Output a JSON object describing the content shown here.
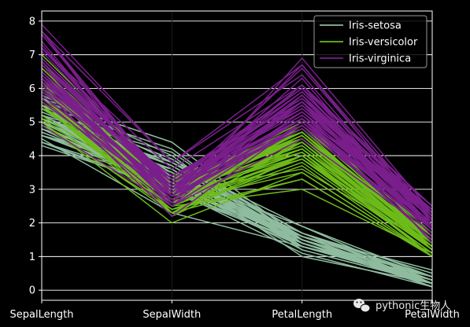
{
  "chart_data": {
    "type": "parallel_coordinates",
    "title": "",
    "xlabel": "",
    "ylabel": "",
    "categories": [
      "SepalLength",
      "SepalWidth",
      "PetalLength",
      "PetalWidth"
    ],
    "ylim": [
      -0.3,
      8.3
    ],
    "yticks": [
      0,
      1,
      2,
      3,
      4,
      5,
      6,
      7,
      8
    ],
    "grid": true,
    "legend_position": "top-right",
    "series": [
      {
        "name": "Iris-setosa",
        "color": "#8fbc9f",
        "rows": [
          [
            5.1,
            3.5,
            1.4,
            0.2
          ],
          [
            4.9,
            3.0,
            1.4,
            0.2
          ],
          [
            4.7,
            3.2,
            1.3,
            0.2
          ],
          [
            4.6,
            3.1,
            1.5,
            0.2
          ],
          [
            5.0,
            3.6,
            1.4,
            0.2
          ],
          [
            5.4,
            3.9,
            1.7,
            0.4
          ],
          [
            4.6,
            3.4,
            1.4,
            0.3
          ],
          [
            5.0,
            3.4,
            1.5,
            0.2
          ],
          [
            4.4,
            2.9,
            1.4,
            0.2
          ],
          [
            4.9,
            3.1,
            1.5,
            0.1
          ],
          [
            5.4,
            3.7,
            1.5,
            0.2
          ],
          [
            4.8,
            3.4,
            1.6,
            0.2
          ],
          [
            4.8,
            3.0,
            1.4,
            0.1
          ],
          [
            4.3,
            3.0,
            1.1,
            0.1
          ],
          [
            5.8,
            4.0,
            1.2,
            0.2
          ],
          [
            5.7,
            4.4,
            1.5,
            0.4
          ],
          [
            5.4,
            3.9,
            1.3,
            0.4
          ],
          [
            5.1,
            3.5,
            1.4,
            0.3
          ],
          [
            5.7,
            3.8,
            1.7,
            0.3
          ],
          [
            5.1,
            3.8,
            1.5,
            0.3
          ],
          [
            5.4,
            3.4,
            1.7,
            0.2
          ],
          [
            5.1,
            3.7,
            1.5,
            0.4
          ],
          [
            4.6,
            3.6,
            1.0,
            0.2
          ],
          [
            5.1,
            3.3,
            1.7,
            0.5
          ],
          [
            4.8,
            3.4,
            1.9,
            0.2
          ],
          [
            5.0,
            3.0,
            1.6,
            0.2
          ],
          [
            5.0,
            3.4,
            1.6,
            0.4
          ],
          [
            5.2,
            3.5,
            1.5,
            0.2
          ],
          [
            5.2,
            3.4,
            1.4,
            0.2
          ],
          [
            4.7,
            3.2,
            1.6,
            0.2
          ],
          [
            4.8,
            3.1,
            1.6,
            0.2
          ],
          [
            5.4,
            3.4,
            1.5,
            0.4
          ],
          [
            5.2,
            4.1,
            1.5,
            0.1
          ],
          [
            5.5,
            4.2,
            1.4,
            0.2
          ],
          [
            4.9,
            3.1,
            1.5,
            0.1
          ],
          [
            5.0,
            3.2,
            1.2,
            0.2
          ],
          [
            5.5,
            3.5,
            1.3,
            0.2
          ],
          [
            4.9,
            3.1,
            1.5,
            0.1
          ],
          [
            4.4,
            3.0,
            1.3,
            0.2
          ],
          [
            5.1,
            3.4,
            1.5,
            0.2
          ],
          [
            5.0,
            3.5,
            1.3,
            0.3
          ],
          [
            4.5,
            2.3,
            1.3,
            0.3
          ],
          [
            4.4,
            3.2,
            1.3,
            0.2
          ],
          [
            5.0,
            3.5,
            1.6,
            0.6
          ],
          [
            5.1,
            3.8,
            1.9,
            0.4
          ],
          [
            4.8,
            3.0,
            1.4,
            0.3
          ],
          [
            5.1,
            3.8,
            1.6,
            0.2
          ],
          [
            4.6,
            3.2,
            1.4,
            0.2
          ],
          [
            5.3,
            3.7,
            1.5,
            0.2
          ],
          [
            5.0,
            3.3,
            1.4,
            0.2
          ]
        ]
      },
      {
        "name": "Iris-versicolor",
        "color": "#6dbb1a",
        "rows": [
          [
            7.0,
            3.2,
            4.7,
            1.4
          ],
          [
            6.4,
            3.2,
            4.5,
            1.5
          ],
          [
            6.9,
            3.1,
            4.9,
            1.5
          ],
          [
            5.5,
            2.3,
            4.0,
            1.3
          ],
          [
            6.5,
            2.8,
            4.6,
            1.5
          ],
          [
            5.7,
            2.8,
            4.5,
            1.3
          ],
          [
            6.3,
            3.3,
            4.7,
            1.6
          ],
          [
            4.9,
            2.4,
            3.3,
            1.0
          ],
          [
            6.6,
            2.9,
            4.6,
            1.3
          ],
          [
            5.2,
            2.7,
            3.9,
            1.4
          ],
          [
            5.0,
            2.0,
            3.5,
            1.0
          ],
          [
            5.9,
            3.0,
            4.2,
            1.5
          ],
          [
            6.0,
            2.2,
            4.0,
            1.0
          ],
          [
            6.1,
            2.9,
            4.7,
            1.4
          ],
          [
            5.6,
            2.9,
            3.6,
            1.3
          ],
          [
            6.7,
            3.1,
            4.4,
            1.4
          ],
          [
            5.6,
            3.0,
            4.5,
            1.5
          ],
          [
            5.8,
            2.7,
            4.1,
            1.0
          ],
          [
            6.2,
            2.2,
            4.5,
            1.5
          ],
          [
            5.6,
            2.5,
            3.9,
            1.1
          ],
          [
            5.9,
            3.2,
            4.8,
            1.8
          ],
          [
            6.1,
            2.8,
            4.0,
            1.3
          ],
          [
            6.3,
            2.5,
            4.9,
            1.5
          ],
          [
            6.1,
            2.8,
            4.7,
            1.2
          ],
          [
            6.4,
            2.9,
            4.3,
            1.3
          ],
          [
            6.6,
            3.0,
            4.4,
            1.4
          ],
          [
            6.8,
            2.8,
            4.8,
            1.4
          ],
          [
            6.7,
            3.0,
            5.0,
            1.7
          ],
          [
            6.0,
            2.9,
            4.5,
            1.5
          ],
          [
            5.7,
            2.6,
            3.5,
            1.0
          ],
          [
            5.5,
            2.4,
            3.8,
            1.1
          ],
          [
            5.5,
            2.4,
            3.7,
            1.0
          ],
          [
            5.8,
            2.7,
            3.9,
            1.2
          ],
          [
            6.0,
            2.7,
            5.1,
            1.6
          ],
          [
            5.4,
            3.0,
            4.5,
            1.5
          ],
          [
            6.0,
            3.4,
            4.5,
            1.6
          ],
          [
            6.7,
            3.1,
            4.7,
            1.5
          ],
          [
            6.3,
            2.3,
            4.4,
            1.3
          ],
          [
            5.6,
            3.0,
            4.1,
            1.3
          ],
          [
            5.5,
            2.5,
            4.0,
            1.3
          ],
          [
            5.5,
            2.6,
            4.4,
            1.2
          ],
          [
            6.1,
            3.0,
            4.6,
            1.4
          ],
          [
            5.8,
            2.6,
            4.0,
            1.2
          ],
          [
            5.0,
            2.3,
            3.3,
            1.0
          ],
          [
            5.6,
            2.7,
            4.2,
            1.3
          ],
          [
            5.7,
            3.0,
            4.2,
            1.2
          ],
          [
            5.7,
            2.9,
            4.2,
            1.3
          ],
          [
            6.2,
            2.9,
            4.3,
            1.3
          ],
          [
            5.1,
            2.5,
            3.0,
            1.1
          ],
          [
            5.7,
            2.8,
            4.1,
            1.3
          ]
        ]
      },
      {
        "name": "Iris-virginica",
        "color": "#7a1f8c",
        "rows": [
          [
            6.3,
            3.3,
            6.0,
            2.5
          ],
          [
            5.8,
            2.7,
            5.1,
            1.9
          ],
          [
            7.1,
            3.0,
            5.9,
            2.1
          ],
          [
            6.3,
            2.9,
            5.6,
            1.8
          ],
          [
            6.5,
            3.0,
            5.8,
            2.2
          ],
          [
            7.6,
            3.0,
            6.6,
            2.1
          ],
          [
            4.9,
            2.5,
            4.5,
            1.7
          ],
          [
            7.3,
            2.9,
            6.3,
            1.8
          ],
          [
            6.7,
            2.5,
            5.8,
            1.8
          ],
          [
            7.2,
            3.6,
            6.1,
            2.5
          ],
          [
            6.5,
            3.2,
            5.1,
            2.0
          ],
          [
            6.4,
            2.7,
            5.3,
            1.9
          ],
          [
            6.8,
            3.0,
            5.5,
            2.1
          ],
          [
            5.7,
            2.5,
            5.0,
            2.0
          ],
          [
            5.8,
            2.8,
            5.1,
            2.4
          ],
          [
            6.4,
            3.2,
            5.3,
            2.3
          ],
          [
            6.5,
            3.0,
            5.5,
            1.8
          ],
          [
            7.7,
            3.8,
            6.7,
            2.2
          ],
          [
            7.7,
            2.6,
            6.9,
            2.3
          ],
          [
            6.0,
            2.2,
            5.0,
            1.5
          ],
          [
            6.9,
            3.2,
            5.7,
            2.3
          ],
          [
            5.6,
            2.8,
            4.9,
            2.0
          ],
          [
            7.7,
            2.8,
            6.7,
            2.0
          ],
          [
            6.3,
            2.7,
            4.9,
            1.8
          ],
          [
            6.7,
            3.3,
            5.7,
            2.1
          ],
          [
            7.2,
            3.2,
            6.0,
            1.8
          ],
          [
            6.2,
            2.8,
            4.8,
            1.8
          ],
          [
            6.1,
            3.0,
            4.9,
            1.8
          ],
          [
            6.4,
            2.8,
            5.6,
            2.1
          ],
          [
            7.2,
            3.0,
            5.8,
            1.6
          ],
          [
            7.4,
            2.8,
            6.1,
            1.9
          ],
          [
            7.9,
            3.8,
            6.4,
            2.0
          ],
          [
            6.4,
            2.8,
            5.6,
            2.2
          ],
          [
            6.3,
            2.8,
            5.1,
            1.5
          ],
          [
            6.1,
            2.6,
            5.6,
            1.4
          ],
          [
            7.7,
            3.0,
            6.1,
            2.3
          ],
          [
            6.3,
            3.4,
            5.6,
            2.4
          ],
          [
            6.4,
            3.1,
            5.5,
            1.8
          ],
          [
            6.0,
            3.0,
            4.8,
            1.8
          ],
          [
            6.9,
            3.1,
            5.4,
            2.1
          ],
          [
            6.7,
            3.1,
            5.6,
            2.4
          ],
          [
            6.9,
            3.1,
            5.1,
            2.3
          ],
          [
            5.8,
            2.7,
            5.1,
            1.9
          ],
          [
            6.8,
            3.2,
            5.9,
            2.3
          ],
          [
            6.7,
            3.3,
            5.7,
            2.5
          ],
          [
            6.7,
            3.0,
            5.2,
            2.3
          ],
          [
            6.3,
            2.5,
            5.0,
            1.9
          ],
          [
            6.5,
            3.0,
            5.2,
            2.0
          ],
          [
            6.2,
            3.4,
            5.4,
            2.3
          ],
          [
            5.9,
            3.0,
            5.1,
            1.8
          ]
        ]
      }
    ]
  },
  "watermark": {
    "text": "pythonic生物人",
    "icon": "wechat-icon"
  }
}
